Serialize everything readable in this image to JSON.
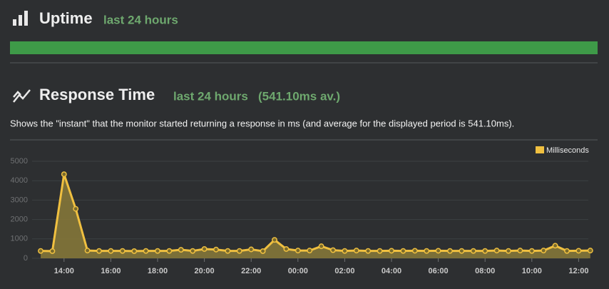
{
  "uptime": {
    "title": "Uptime",
    "period": "last 24 hours"
  },
  "response_time": {
    "title": "Response Time",
    "period": "last 24 hours",
    "average": "(541.10ms av.)",
    "description": "Shows the \"instant\" that the monitor started returning a response in ms (and average for the displayed period is 541.10ms)."
  },
  "chart_data": {
    "type": "area",
    "categories": [
      null,
      null,
      "14:00",
      null,
      null,
      null,
      "16:00",
      null,
      null,
      null,
      "18:00",
      null,
      null,
      null,
      "20:00",
      null,
      null,
      null,
      "22:00",
      null,
      null,
      null,
      "00:00",
      null,
      null,
      null,
      "02:00",
      null,
      null,
      null,
      "04:00",
      null,
      null,
      null,
      "06:00",
      null,
      null,
      null,
      "08:00",
      null,
      null,
      null,
      "10:00",
      null,
      null,
      null,
      "12:00",
      null
    ],
    "series": [
      {
        "name": "Milliseconds",
        "color": "#f0c040",
        "values": [
          380,
          370,
          4330,
          2550,
          400,
          380,
          380,
          380,
          370,
          380,
          380,
          380,
          440,
          380,
          480,
          450,
          380,
          380,
          460,
          370,
          950,
          480,
          400,
          400,
          620,
          420,
          380,
          400,
          380,
          380,
          390,
          380,
          390,
          380,
          390,
          380,
          380,
          380,
          380,
          400,
          380,
          400,
          380,
          400,
          650,
          380,
          390,
          400
        ]
      }
    ],
    "ylim": [
      0,
      5000
    ],
    "yticks": [
      0,
      1000,
      2000,
      3000,
      4000,
      5000
    ],
    "grid": true,
    "legend": "top-right"
  }
}
